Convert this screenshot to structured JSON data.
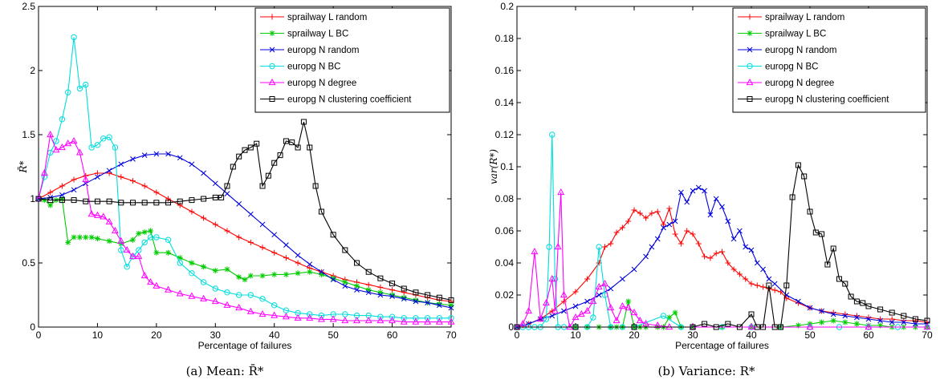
{
  "chart_data": [
    {
      "type": "line",
      "caption": "(a) Mean: R̄*",
      "ylabel": "R̄*",
      "xlabel": "Percentage of failures",
      "xlim": [
        0,
        70
      ],
      "ylim": [
        0,
        2.5
      ],
      "xticks": [
        0,
        10,
        20,
        30,
        40,
        50,
        60,
        70
      ],
      "yticks": [
        0,
        0.5,
        1,
        1.5,
        2,
        2.5
      ],
      "ytick_labels": [
        "0",
        "0.5",
        "1",
        "1.5",
        "2",
        "2.5"
      ],
      "legend_position": "top-right",
      "series": [
        {
          "name": "sprailway L random",
          "color": "#ff0000",
          "marker": "plus",
          "x": [
            0,
            2,
            4,
            6,
            8,
            10,
            12,
            14,
            16,
            18,
            20,
            22,
            24,
            26,
            28,
            30,
            32,
            34,
            36,
            38,
            40,
            42,
            44,
            46,
            48,
            50,
            52,
            54,
            56,
            58,
            60,
            62,
            64,
            66,
            68,
            70
          ],
          "y": [
            1.0,
            1.05,
            1.1,
            1.15,
            1.18,
            1.2,
            1.2,
            1.17,
            1.14,
            1.1,
            1.05,
            1.0,
            0.95,
            0.9,
            0.85,
            0.8,
            0.75,
            0.7,
            0.66,
            0.62,
            0.58,
            0.54,
            0.5,
            0.46,
            0.43,
            0.4,
            0.37,
            0.35,
            0.33,
            0.31,
            0.29,
            0.27,
            0.25,
            0.23,
            0.21,
            0.2
          ]
        },
        {
          "name": "sprailway L BC",
          "color": "#00cc00",
          "marker": "star",
          "x": [
            0,
            1,
            2,
            3,
            4,
            5,
            6,
            7,
            8,
            9,
            10,
            12,
            14,
            16,
            17,
            18,
            19,
            20,
            22,
            24,
            26,
            28,
            30,
            32,
            34,
            35,
            36,
            38,
            40,
            42,
            44,
            46,
            48,
            50,
            52,
            54,
            56,
            58,
            60,
            62,
            64,
            66,
            68,
            70
          ],
          "y": [
            1.0,
            0.99,
            0.95,
            0.99,
            1.0,
            0.66,
            0.7,
            0.7,
            0.7,
            0.7,
            0.69,
            0.67,
            0.65,
            0.68,
            0.73,
            0.74,
            0.75,
            0.58,
            0.58,
            0.54,
            0.5,
            0.47,
            0.44,
            0.45,
            0.39,
            0.37,
            0.4,
            0.4,
            0.41,
            0.41,
            0.42,
            0.43,
            0.41,
            0.38,
            0.35,
            0.32,
            0.29,
            0.27,
            0.25,
            0.23,
            0.21,
            0.19,
            0.18,
            0.17
          ]
        },
        {
          "name": "europg N random",
          "color": "#0000dd",
          "marker": "x",
          "x": [
            0,
            2,
            4,
            6,
            8,
            10,
            12,
            14,
            16,
            18,
            20,
            22,
            24,
            26,
            28,
            30,
            32,
            34,
            36,
            38,
            40,
            42,
            44,
            46,
            48,
            50,
            52,
            54,
            56,
            58,
            60,
            62,
            64,
            66,
            68,
            70
          ],
          "y": [
            1.0,
            1.01,
            1.03,
            1.07,
            1.12,
            1.17,
            1.22,
            1.27,
            1.31,
            1.34,
            1.35,
            1.35,
            1.32,
            1.27,
            1.2,
            1.12,
            1.04,
            0.96,
            0.88,
            0.8,
            0.72,
            0.64,
            0.56,
            0.49,
            0.43,
            0.37,
            0.32,
            0.29,
            0.27,
            0.25,
            0.24,
            0.22,
            0.2,
            0.19,
            0.17,
            0.15
          ]
        },
        {
          "name": "europg N BC",
          "color": "#00dddd",
          "marker": "circle",
          "x": [
            0,
            1,
            2,
            3,
            4,
            5,
            6,
            7,
            8,
            9,
            10,
            11,
            12,
            13,
            14,
            15,
            16,
            17,
            18,
            19,
            20,
            22,
            24,
            26,
            28,
            30,
            32,
            34,
            36,
            38,
            40,
            42,
            44,
            46,
            48,
            50,
            52,
            54,
            56,
            58,
            60,
            62,
            64,
            66,
            68,
            70
          ],
          "y": [
            1.0,
            1.17,
            1.36,
            1.45,
            1.62,
            1.83,
            2.26,
            1.86,
            1.89,
            1.4,
            1.42,
            1.47,
            1.48,
            1.4,
            0.6,
            0.47,
            0.55,
            0.6,
            0.66,
            0.7,
            0.7,
            0.68,
            0.5,
            0.42,
            0.35,
            0.3,
            0.27,
            0.25,
            0.25,
            0.22,
            0.17,
            0.13,
            0.11,
            0.1,
            0.09,
            0.1,
            0.1,
            0.09,
            0.09,
            0.08,
            0.08,
            0.07,
            0.07,
            0.07,
            0.07,
            0.07
          ]
        },
        {
          "name": "europg N degree",
          "color": "#ff00ff",
          "marker": "triangle",
          "x": [
            0,
            1,
            2,
            3,
            4,
            5,
            6,
            7,
            8,
            9,
            10,
            11,
            12,
            13,
            14,
            15,
            16,
            17,
            18,
            19,
            20,
            22,
            24,
            26,
            28,
            30,
            32,
            34,
            36,
            38,
            40,
            42,
            44,
            46,
            48,
            50,
            52,
            54,
            56,
            58,
            60,
            62,
            64,
            66,
            68,
            70
          ],
          "y": [
            1.0,
            1.2,
            1.5,
            1.38,
            1.4,
            1.43,
            1.45,
            1.36,
            1.15,
            0.88,
            0.87,
            0.86,
            0.82,
            0.75,
            0.67,
            0.6,
            0.55,
            0.55,
            0.4,
            0.35,
            0.32,
            0.29,
            0.26,
            0.24,
            0.22,
            0.2,
            0.17,
            0.15,
            0.12,
            0.1,
            0.09,
            0.08,
            0.07,
            0.07,
            0.06,
            0.06,
            0.05,
            0.05,
            0.05,
            0.05,
            0.05,
            0.04,
            0.04,
            0.04,
            0.04,
            0.04
          ]
        },
        {
          "name": "europg N clustering coefficient",
          "color": "#000000",
          "marker": "square",
          "x": [
            0,
            2,
            4,
            6,
            8,
            10,
            12,
            14,
            16,
            18,
            20,
            22,
            24,
            26,
            28,
            30,
            31,
            32,
            33,
            34,
            35,
            36,
            37,
            38,
            39,
            40,
            41,
            42,
            43,
            44,
            45,
            46,
            47,
            48,
            50,
            52,
            54,
            56,
            58,
            60,
            62,
            64,
            66,
            68,
            70
          ],
          "y": [
            1.0,
            0.99,
            0.99,
            0.99,
            0.98,
            0.98,
            0.98,
            0.97,
            0.97,
            0.97,
            0.97,
            0.97,
            0.98,
            0.99,
            1.0,
            1.01,
            1.01,
            1.1,
            1.25,
            1.33,
            1.38,
            1.4,
            1.43,
            1.1,
            1.18,
            1.28,
            1.34,
            1.45,
            1.44,
            1.4,
            1.6,
            1.4,
            1.1,
            0.9,
            0.72,
            0.6,
            0.5,
            0.43,
            0.38,
            0.34,
            0.3,
            0.27,
            0.25,
            0.23,
            0.21
          ]
        }
      ]
    },
    {
      "type": "line",
      "caption": "(b) Variance: R*",
      "ylabel": "var(R*)",
      "xlabel": "Percentage of failures",
      "xlim": [
        0,
        70
      ],
      "ylim": [
        0,
        0.2
      ],
      "xticks": [
        0,
        10,
        20,
        30,
        40,
        50,
        60,
        70
      ],
      "yticks": [
        0,
        0.02,
        0.04,
        0.06,
        0.08,
        0.1,
        0.12,
        0.14,
        0.16,
        0.18,
        0.2
      ],
      "ytick_labels": [
        "0",
        "0.02",
        "0.04",
        "0.06",
        "0.08",
        "0.1",
        "0.12",
        "0.14",
        "0.16",
        "0.18",
        "0.2"
      ],
      "legend_position": "top-right",
      "series": [
        {
          "name": "sprailway L random",
          "color": "#ff0000",
          "marker": "plus",
          "x": [
            1,
            2,
            4,
            6,
            8,
            10,
            12,
            14,
            15,
            16,
            17,
            18,
            19,
            20,
            21,
            22,
            23,
            24,
            25,
            26,
            27,
            28,
            29,
            30,
            31,
            32,
            33,
            34,
            35,
            36,
            37,
            38,
            39,
            40,
            41,
            42,
            43,
            44,
            45,
            46,
            48,
            50,
            52,
            54,
            56,
            58,
            60,
            62,
            64,
            66,
            68,
            70
          ],
          "y": [
            0.001,
            0.002,
            0.005,
            0.01,
            0.016,
            0.022,
            0.03,
            0.04,
            0.05,
            0.052,
            0.059,
            0.062,
            0.066,
            0.073,
            0.071,
            0.068,
            0.071,
            0.072,
            0.064,
            0.074,
            0.058,
            0.052,
            0.06,
            0.058,
            0.052,
            0.044,
            0.043,
            0.046,
            0.047,
            0.04,
            0.036,
            0.033,
            0.03,
            0.027,
            0.026,
            0.025,
            0.024,
            0.023,
            0.022,
            0.018,
            0.015,
            0.012,
            0.01,
            0.009,
            0.008,
            0.007,
            0.006,
            0.005,
            0.005,
            0.004,
            0.004,
            0.003
          ]
        },
        {
          "name": "sprailway L BC",
          "color": "#00cc00",
          "marker": "star",
          "x": [
            0,
            10,
            12,
            14,
            16,
            17,
            18,
            19,
            20,
            21,
            22,
            24,
            25,
            26,
            27,
            28,
            30,
            35,
            40,
            45,
            48,
            50,
            52,
            54,
            56,
            58,
            60,
            62,
            64,
            66,
            68,
            70
          ],
          "y": [
            0,
            0,
            0,
            0,
            0,
            0,
            0,
            0.016,
            0,
            0,
            0,
            0,
            0,
            0.006,
            0.009,
            0,
            0,
            0,
            0,
            0,
            0.001,
            0.002,
            0.003,
            0.004,
            0.003,
            0.002,
            0.001,
            0.001,
            0,
            0,
            0,
            0
          ]
        },
        {
          "name": "europg N random",
          "color": "#0000dd",
          "marker": "x",
          "x": [
            0,
            2,
            4,
            6,
            8,
            10,
            12,
            14,
            16,
            18,
            20,
            22,
            23,
            24,
            25,
            26,
            27,
            28,
            29,
            30,
            31,
            32,
            33,
            34,
            35,
            36,
            37,
            38,
            39,
            40,
            41,
            42,
            43,
            44,
            46,
            48,
            50,
            52,
            54,
            56,
            58,
            60,
            62,
            64,
            66,
            68,
            70
          ],
          "y": [
            0,
            0.002,
            0.005,
            0.007,
            0.01,
            0.013,
            0.016,
            0.02,
            0.024,
            0.03,
            0.036,
            0.044,
            0.05,
            0.055,
            0.062,
            0.064,
            0.066,
            0.084,
            0.078,
            0.085,
            0.087,
            0.085,
            0.07,
            0.08,
            0.075,
            0.066,
            0.055,
            0.06,
            0.05,
            0.048,
            0.04,
            0.036,
            0.03,
            0.027,
            0.02,
            0.016,
            0.012,
            0.01,
            0.008,
            0.007,
            0.006,
            0.005,
            0.004,
            0.003,
            0.003,
            0.002,
            0.002
          ]
        },
        {
          "name": "europg N BC",
          "color": "#00dddd",
          "marker": "circle",
          "x": [
            0,
            1,
            2,
            3,
            4,
            5,
            5.5,
            6,
            6.5,
            7,
            8,
            10,
            12,
            13,
            14,
            15,
            16,
            18,
            20,
            25,
            28,
            30,
            35,
            40,
            45,
            50,
            55,
            60,
            65,
            70
          ],
          "y": [
            0,
            0,
            0,
            0,
            0,
            0.005,
            0.05,
            0.12,
            0.03,
            0,
            0,
            0,
            0,
            0.006,
            0.05,
            0.02,
            0,
            0,
            0,
            0.007,
            0,
            0,
            0,
            0,
            0,
            0,
            0,
            0,
            0,
            0
          ]
        },
        {
          "name": "europg N degree",
          "color": "#ff00ff",
          "marker": "triangle",
          "x": [
            0,
            1,
            2,
            3,
            4,
            5,
            6,
            6.5,
            7,
            7.5,
            8,
            9,
            10,
            11,
            12,
            13,
            14,
            15,
            16,
            17,
            18,
            19,
            20,
            21,
            22,
            24,
            26,
            30,
            40,
            50,
            60,
            70
          ],
          "y": [
            0,
            0.002,
            0.01,
            0.047,
            0.005,
            0.015,
            0.03,
            0.01,
            0.05,
            0.084,
            0.02,
            0,
            0.006,
            0.008,
            0.01,
            0.016,
            0.025,
            0.027,
            0.012,
            0.004,
            0.013,
            0.012,
            0.009,
            0.004,
            0.002,
            0.001,
            0,
            0,
            0,
            0,
            0,
            0
          ]
        },
        {
          "name": "europg N clustering coefficient",
          "color": "#000000",
          "marker": "square",
          "x": [
            0,
            10,
            20,
            30,
            32,
            34,
            36,
            38,
            40,
            41,
            42,
            43,
            44,
            45,
            46,
            47,
            48,
            49,
            50,
            51,
            52,
            53,
            54,
            55,
            56,
            57,
            58,
            59,
            60,
            62,
            64,
            66,
            68,
            70
          ],
          "y": [
            0,
            0,
            0,
            0,
            0.002,
            0,
            0.002,
            0,
            0.008,
            0,
            0,
            0.026,
            0,
            0,
            0.026,
            0.081,
            0.101,
            0.094,
            0.072,
            0.059,
            0.058,
            0.039,
            0.049,
            0.03,
            0.027,
            0.019,
            0.016,
            0.015,
            0.013,
            0.011,
            0.009,
            0.007,
            0.005,
            0.004
          ]
        }
      ]
    }
  ]
}
